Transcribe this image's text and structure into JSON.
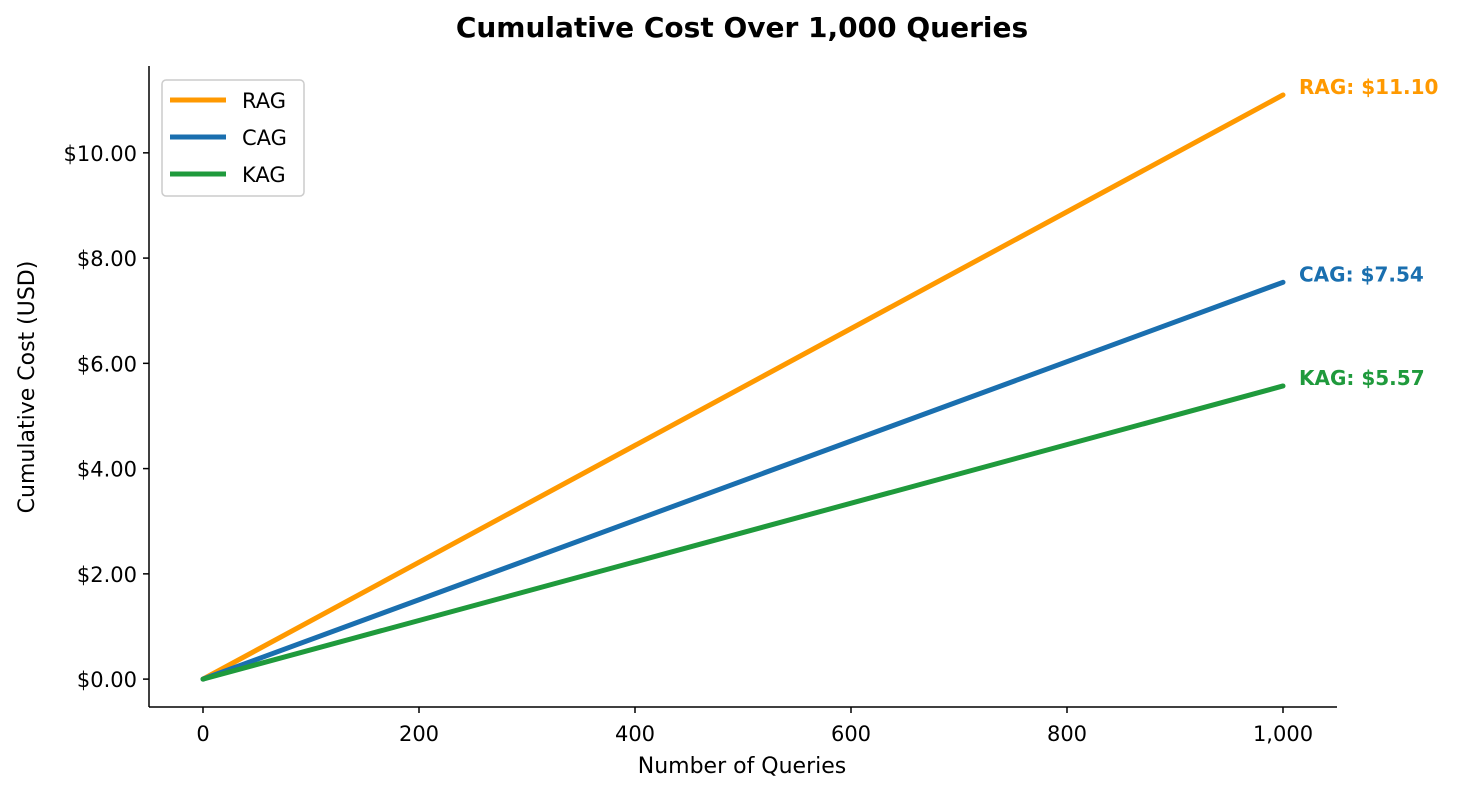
{
  "chart_data": {
    "type": "line",
    "title": "Cumulative Cost Over 1,000 Queries",
    "xlabel": "Number of Queries",
    "ylabel": "Cumulative Cost (USD)",
    "xlim": [
      -50,
      1050
    ],
    "ylim": [
      -0.53,
      11.65
    ],
    "x_ticks": [
      0,
      200,
      400,
      600,
      800,
      1000
    ],
    "x_tick_labels": [
      "0",
      "200",
      "400",
      "600",
      "800",
      "1,000"
    ],
    "y_ticks": [
      0,
      2,
      4,
      6,
      8,
      10
    ],
    "y_tick_labels": [
      "$0.00",
      "$2.00",
      "$4.00",
      "$6.00",
      "$8.00",
      "$10.00"
    ],
    "grid": false,
    "legend_position": "top-left",
    "series": [
      {
        "name": "RAG",
        "color": "#ff9900",
        "x": [
          0,
          1000
        ],
        "y": [
          0,
          11.1
        ],
        "end_label": "RAG: $11.10"
      },
      {
        "name": "CAG",
        "color": "#1a6faf",
        "x": [
          0,
          1000
        ],
        "y": [
          0,
          7.54
        ],
        "end_label": "CAG: $7.54"
      },
      {
        "name": "KAG",
        "color": "#1f9a3c",
        "x": [
          0,
          1000
        ],
        "y": [
          0,
          5.57
        ],
        "end_label": "KAG: $5.57"
      }
    ]
  }
}
